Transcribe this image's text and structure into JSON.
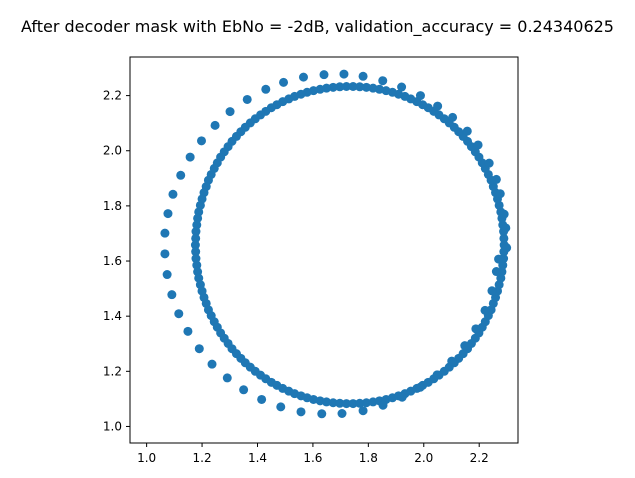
{
  "chart_data": {
    "type": "scatter",
    "title": "After decoder mask with EbNo = -2dB, validation_accuracy = 0.24340625",
    "xlabel": "",
    "ylabel": "",
    "xlim": [
      0.94,
      2.34
    ],
    "ylim": [
      0.94,
      2.34
    ],
    "xticks": [
      1.0,
      1.2,
      1.4,
      1.6,
      1.8,
      2.0,
      2.2
    ],
    "yticks": [
      1.0,
      1.2,
      1.4,
      1.6,
      1.8,
      2.0,
      2.2
    ],
    "xtick_labels": [
      "1.0",
      "1.2",
      "1.4",
      "1.6",
      "1.8",
      "2.0",
      "2.2"
    ],
    "ytick_labels": [
      "1.0",
      "1.2",
      "1.4",
      "1.6",
      "1.8",
      "2.0",
      "2.2"
    ],
    "grid": false,
    "marker_color": "#1f77b4",
    "points": [
      {
        "x": 2.29,
        "y": 1.658
      },
      {
        "x": 2.289,
        "y": 1.682
      },
      {
        "x": 2.288,
        "y": 1.707
      },
      {
        "x": 2.285,
        "y": 1.731
      },
      {
        "x": 2.282,
        "y": 1.755
      },
      {
        "x": 2.278,
        "y": 1.778
      },
      {
        "x": 2.272,
        "y": 1.802
      },
      {
        "x": 2.266,
        "y": 1.825
      },
      {
        "x": 2.259,
        "y": 1.848
      },
      {
        "x": 2.251,
        "y": 1.87
      },
      {
        "x": 2.243,
        "y": 1.893
      },
      {
        "x": 2.233,
        "y": 1.914
      },
      {
        "x": 2.222,
        "y": 1.936
      },
      {
        "x": 2.211,
        "y": 1.956
      },
      {
        "x": 2.199,
        "y": 1.977
      },
      {
        "x": 2.186,
        "y": 1.996
      },
      {
        "x": 2.172,
        "y": 2.015
      },
      {
        "x": 2.158,
        "y": 2.034
      },
      {
        "x": 2.142,
        "y": 2.052
      },
      {
        "x": 2.126,
        "y": 2.069
      },
      {
        "x": 2.11,
        "y": 2.085
      },
      {
        "x": 2.092,
        "y": 2.101
      },
      {
        "x": 2.074,
        "y": 2.116
      },
      {
        "x": 2.055,
        "y": 2.13
      },
      {
        "x": 2.036,
        "y": 2.143
      },
      {
        "x": 2.016,
        "y": 2.156
      },
      {
        "x": 1.996,
        "y": 2.167
      },
      {
        "x": 1.975,
        "y": 2.178
      },
      {
        "x": 1.953,
        "y": 2.188
      },
      {
        "x": 1.932,
        "y": 2.197
      },
      {
        "x": 1.909,
        "y": 2.205
      },
      {
        "x": 1.887,
        "y": 2.212
      },
      {
        "x": 1.864,
        "y": 2.218
      },
      {
        "x": 1.84,
        "y": 2.223
      },
      {
        "x": 1.817,
        "y": 2.227
      },
      {
        "x": 1.793,
        "y": 2.23
      },
      {
        "x": 1.769,
        "y": 2.232
      },
      {
        "x": 1.745,
        "y": 2.233
      },
      {
        "x": 1.721,
        "y": 2.233
      },
      {
        "x": 1.697,
        "y": 2.232
      },
      {
        "x": 1.673,
        "y": 2.23
      },
      {
        "x": 1.649,
        "y": 2.227
      },
      {
        "x": 1.626,
        "y": 2.223
      },
      {
        "x": 1.602,
        "y": 2.218
      },
      {
        "x": 1.579,
        "y": 2.212
      },
      {
        "x": 1.557,
        "y": 2.205
      },
      {
        "x": 1.534,
        "y": 2.197
      },
      {
        "x": 1.513,
        "y": 2.188
      },
      {
        "x": 1.491,
        "y": 2.178
      },
      {
        "x": 1.47,
        "y": 2.167
      },
      {
        "x": 1.45,
        "y": 2.156
      },
      {
        "x": 1.43,
        "y": 2.143
      },
      {
        "x": 1.411,
        "y": 2.13
      },
      {
        "x": 1.392,
        "y": 2.116
      },
      {
        "x": 1.374,
        "y": 2.101
      },
      {
        "x": 1.356,
        "y": 2.085
      },
      {
        "x": 1.34,
        "y": 2.069
      },
      {
        "x": 1.324,
        "y": 2.052
      },
      {
        "x": 1.308,
        "y": 2.034
      },
      {
        "x": 1.294,
        "y": 2.015
      },
      {
        "x": 1.28,
        "y": 1.996
      },
      {
        "x": 1.267,
        "y": 1.977
      },
      {
        "x": 1.255,
        "y": 1.956
      },
      {
        "x": 1.244,
        "y": 1.936
      },
      {
        "x": 1.233,
        "y": 1.914
      },
      {
        "x": 1.223,
        "y": 1.893
      },
      {
        "x": 1.215,
        "y": 1.87
      },
      {
        "x": 1.207,
        "y": 1.848
      },
      {
        "x": 1.2,
        "y": 1.825
      },
      {
        "x": 1.194,
        "y": 1.802
      },
      {
        "x": 1.188,
        "y": 1.778
      },
      {
        "x": 1.184,
        "y": 1.755
      },
      {
        "x": 1.181,
        "y": 1.731
      },
      {
        "x": 1.178,
        "y": 1.707
      },
      {
        "x": 1.177,
        "y": 1.682
      },
      {
        "x": 1.176,
        "y": 1.658
      },
      {
        "x": 1.177,
        "y": 1.634
      },
      {
        "x": 1.178,
        "y": 1.609
      },
      {
        "x": 1.181,
        "y": 1.585
      },
      {
        "x": 1.184,
        "y": 1.561
      },
      {
        "x": 1.188,
        "y": 1.538
      },
      {
        "x": 1.194,
        "y": 1.514
      },
      {
        "x": 1.2,
        "y": 1.491
      },
      {
        "x": 1.207,
        "y": 1.468
      },
      {
        "x": 1.215,
        "y": 1.446
      },
      {
        "x": 1.223,
        "y": 1.423
      },
      {
        "x": 1.233,
        "y": 1.402
      },
      {
        "x": 1.244,
        "y": 1.38
      },
      {
        "x": 1.255,
        "y": 1.36
      },
      {
        "x": 1.267,
        "y": 1.339
      },
      {
        "x": 1.28,
        "y": 1.32
      },
      {
        "x": 1.294,
        "y": 1.301
      },
      {
        "x": 1.308,
        "y": 1.282
      },
      {
        "x": 1.324,
        "y": 1.264
      },
      {
        "x": 1.34,
        "y": 1.247
      },
      {
        "x": 1.356,
        "y": 1.231
      },
      {
        "x": 1.374,
        "y": 1.215
      },
      {
        "x": 1.392,
        "y": 1.2
      },
      {
        "x": 1.411,
        "y": 1.186
      },
      {
        "x": 1.43,
        "y": 1.173
      },
      {
        "x": 1.45,
        "y": 1.16
      },
      {
        "x": 1.47,
        "y": 1.149
      },
      {
        "x": 1.491,
        "y": 1.138
      },
      {
        "x": 1.513,
        "y": 1.128
      },
      {
        "x": 1.534,
        "y": 1.119
      },
      {
        "x": 1.557,
        "y": 1.111
      },
      {
        "x": 1.579,
        "y": 1.104
      },
      {
        "x": 1.602,
        "y": 1.098
      },
      {
        "x": 1.626,
        "y": 1.093
      },
      {
        "x": 1.649,
        "y": 1.089
      },
      {
        "x": 1.673,
        "y": 1.086
      },
      {
        "x": 1.697,
        "y": 1.084
      },
      {
        "x": 1.721,
        "y": 1.083
      },
      {
        "x": 1.745,
        "y": 1.083
      },
      {
        "x": 1.769,
        "y": 1.084
      },
      {
        "x": 1.793,
        "y": 1.086
      },
      {
        "x": 1.817,
        "y": 1.089
      },
      {
        "x": 1.84,
        "y": 1.093
      },
      {
        "x": 1.864,
        "y": 1.098
      },
      {
        "x": 1.887,
        "y": 1.104
      },
      {
        "x": 1.909,
        "y": 1.111
      },
      {
        "x": 1.932,
        "y": 1.119
      },
      {
        "x": 1.953,
        "y": 1.128
      },
      {
        "x": 1.975,
        "y": 1.138
      },
      {
        "x": 1.996,
        "y": 1.149
      },
      {
        "x": 2.016,
        "y": 1.16
      },
      {
        "x": 2.036,
        "y": 1.173
      },
      {
        "x": 2.055,
        "y": 1.186
      },
      {
        "x": 2.074,
        "y": 1.2
      },
      {
        "x": 2.092,
        "y": 1.215
      },
      {
        "x": 2.11,
        "y": 1.231
      },
      {
        "x": 2.126,
        "y": 1.247
      },
      {
        "x": 2.142,
        "y": 1.264
      },
      {
        "x": 2.158,
        "y": 1.282
      },
      {
        "x": 2.172,
        "y": 1.301
      },
      {
        "x": 2.186,
        "y": 1.32
      },
      {
        "x": 2.199,
        "y": 1.339
      },
      {
        "x": 2.211,
        "y": 1.36
      },
      {
        "x": 2.222,
        "y": 1.38
      },
      {
        "x": 2.233,
        "y": 1.402
      },
      {
        "x": 2.243,
        "y": 1.423
      },
      {
        "x": 2.251,
        "y": 1.446
      },
      {
        "x": 2.259,
        "y": 1.468
      },
      {
        "x": 2.266,
        "y": 1.491
      },
      {
        "x": 2.272,
        "y": 1.514
      },
      {
        "x": 2.278,
        "y": 1.538
      },
      {
        "x": 2.282,
        "y": 1.561
      },
      {
        "x": 2.285,
        "y": 1.585
      },
      {
        "x": 2.288,
        "y": 1.609
      },
      {
        "x": 2.289,
        "y": 1.634
      },
      {
        "x": 2.299,
        "y": 1.648
      },
      {
        "x": 2.296,
        "y": 1.72
      },
      {
        "x": 2.29,
        "y": 1.77
      },
      {
        "x": 2.276,
        "y": 1.844
      },
      {
        "x": 2.262,
        "y": 1.896
      },
      {
        "x": 2.236,
        "y": 1.955
      },
      {
        "x": 2.196,
        "y": 2.021
      },
      {
        "x": 2.157,
        "y": 2.071
      },
      {
        "x": 2.104,
        "y": 2.121
      },
      {
        "x": 2.05,
        "y": 2.162
      },
      {
        "x": 1.988,
        "y": 2.2
      },
      {
        "x": 1.92,
        "y": 2.231
      },
      {
        "x": 1.852,
        "y": 2.254
      },
      {
        "x": 1.781,
        "y": 2.27
      },
      {
        "x": 1.712,
        "y": 2.278
      },
      {
        "x": 1.64,
        "y": 2.276
      },
      {
        "x": 1.566,
        "y": 2.267
      },
      {
        "x": 1.494,
        "y": 2.248
      },
      {
        "x": 1.43,
        "y": 2.223
      },
      {
        "x": 1.363,
        "y": 2.186
      },
      {
        "x": 1.301,
        "y": 2.142
      },
      {
        "x": 1.247,
        "y": 2.092
      },
      {
        "x": 1.198,
        "y": 2.036
      },
      {
        "x": 1.157,
        "y": 1.977
      },
      {
        "x": 1.123,
        "y": 1.911
      },
      {
        "x": 1.095,
        "y": 1.842
      },
      {
        "x": 1.077,
        "y": 1.772
      },
      {
        "x": 1.066,
        "y": 1.701
      },
      {
        "x": 1.066,
        "y": 1.626
      },
      {
        "x": 1.074,
        "y": 1.551
      },
      {
        "x": 1.091,
        "y": 1.478
      },
      {
        "x": 1.116,
        "y": 1.409
      },
      {
        "x": 1.149,
        "y": 1.345
      },
      {
        "x": 1.19,
        "y": 1.282
      },
      {
        "x": 1.236,
        "y": 1.226
      },
      {
        "x": 1.291,
        "y": 1.176
      },
      {
        "x": 1.35,
        "y": 1.133
      },
      {
        "x": 1.415,
        "y": 1.098
      },
      {
        "x": 1.484,
        "y": 1.071
      },
      {
        "x": 1.557,
        "y": 1.053
      },
      {
        "x": 1.632,
        "y": 1.046
      },
      {
        "x": 1.705,
        "y": 1.047
      },
      {
        "x": 1.781,
        "y": 1.057
      },
      {
        "x": 1.853,
        "y": 1.077
      },
      {
        "x": 1.922,
        "y": 1.106
      },
      {
        "x": 1.987,
        "y": 1.142
      },
      {
        "x": 2.048,
        "y": 1.187
      },
      {
        "x": 2.101,
        "y": 1.237
      },
      {
        "x": 2.148,
        "y": 1.293
      },
      {
        "x": 2.188,
        "y": 1.354
      },
      {
        "x": 2.221,
        "y": 1.421
      },
      {
        "x": 2.246,
        "y": 1.492
      },
      {
        "x": 2.262,
        "y": 1.562
      },
      {
        "x": 2.27,
        "y": 1.607
      }
    ]
  }
}
